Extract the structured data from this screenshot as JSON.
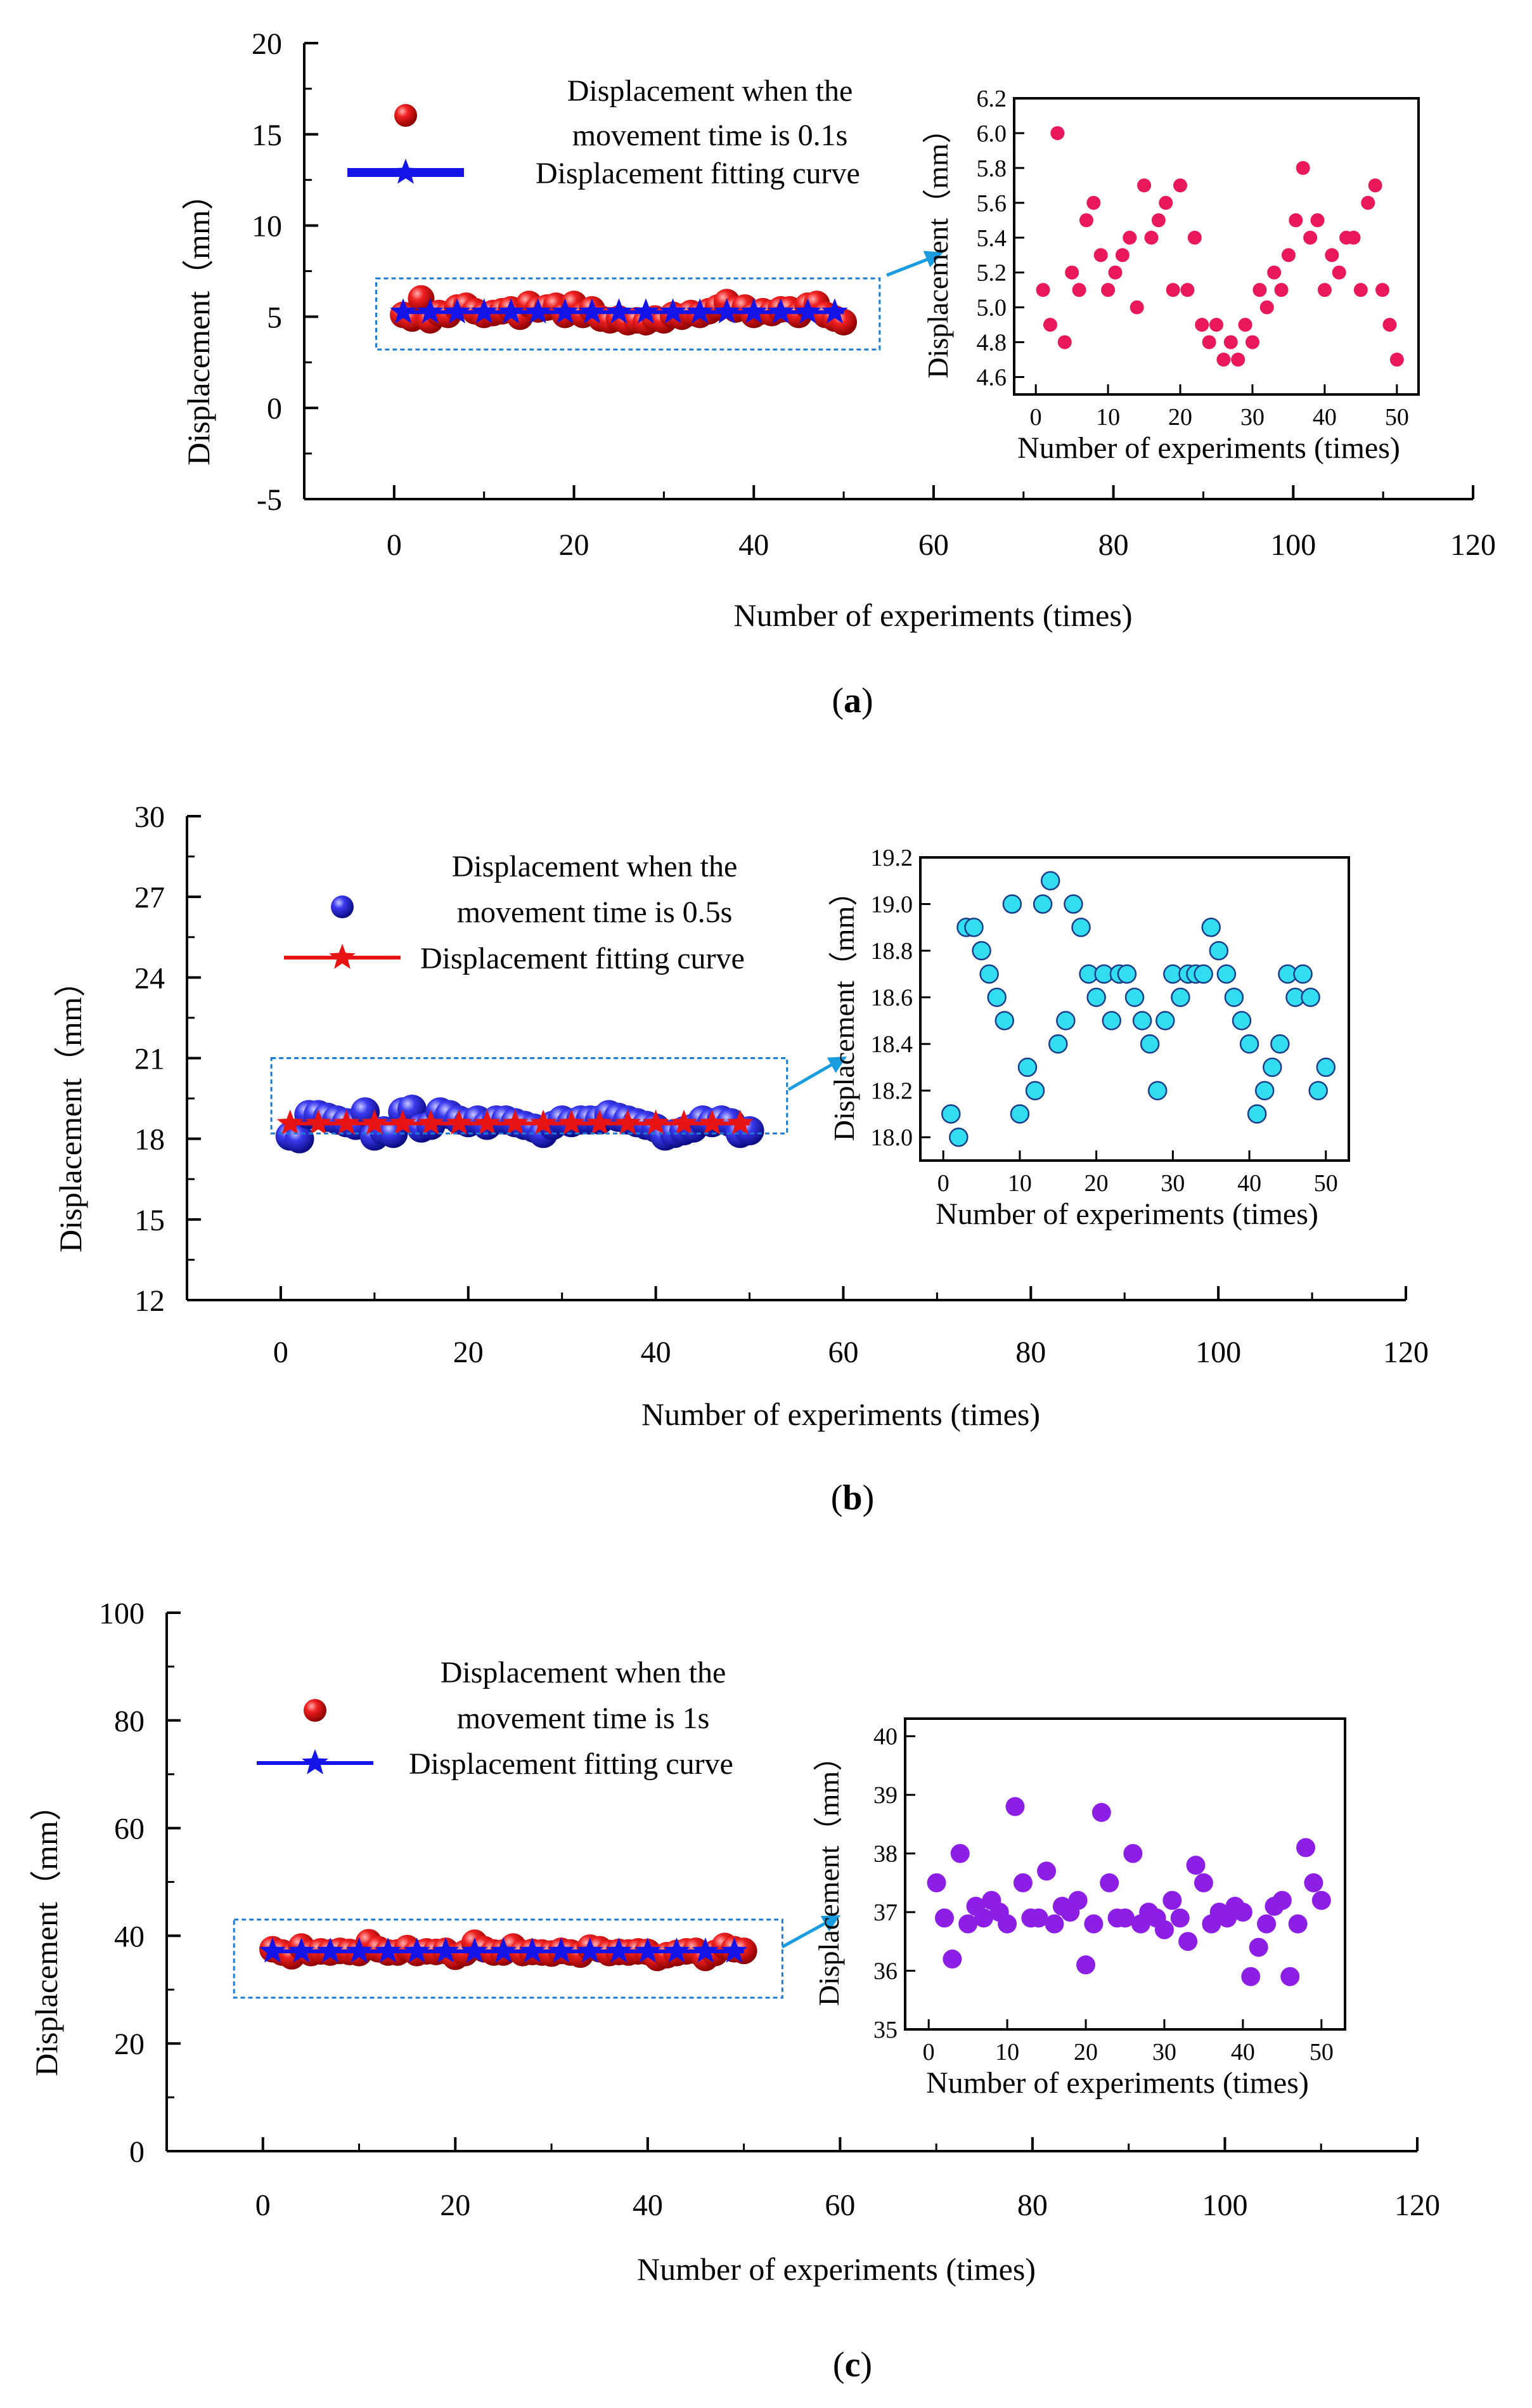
{
  "panels": [
    {
      "caption": "(a)",
      "caption_letter": "a",
      "chart_data": {
        "type": "scatter",
        "xlabel": "Number of experiments (times)",
        "ylabel": "Displacement（mm）",
        "xlim": [
          -10,
          120
        ],
        "ylim": [
          -5,
          20
        ],
        "xticks": [
          0,
          20,
          40,
          60,
          80,
          100,
          120
        ],
        "yticks": [
          -5,
          0,
          5,
          10,
          15,
          20
        ],
        "legend_position": "top-left",
        "series": [
          {
            "name": "Displacement when the movement time is 0.1s",
            "marker": "sphere",
            "color": "#e8141b",
            "x": [
              1,
              2,
              3,
              4,
              5,
              6,
              7,
              8,
              9,
              10,
              11,
              12,
              13,
              14,
              15,
              16,
              17,
              18,
              19,
              20,
              21,
              22,
              23,
              24,
              25,
              26,
              27,
              28,
              29,
              30,
              31,
              32,
              33,
              34,
              35,
              36,
              37,
              38,
              39,
              40,
              41,
              42,
              43,
              44,
              45,
              46,
              47,
              48,
              49,
              50
            ],
            "values": [
              5.1,
              4.9,
              6.0,
              4.8,
              5.2,
              5.1,
              5.5,
              5.6,
              5.3,
              5.1,
              5.2,
              5.3,
              5.4,
              5.0,
              5.7,
              5.4,
              5.5,
              5.6,
              5.1,
              5.7,
              5.1,
              5.4,
              4.9,
              4.8,
              4.9,
              4.7,
              4.8,
              4.7,
              4.9,
              4.8,
              5.1,
              5.0,
              5.2,
              5.1,
              5.3,
              5.5,
              5.8,
              5.4,
              5.5,
              5.1,
              5.3,
              5.2,
              5.4,
              5.4,
              5.1,
              5.6,
              5.7,
              5.1,
              4.9,
              4.7
            ]
          },
          {
            "name": "Displacement fitting curve",
            "marker": "star-line",
            "color": "#1414e8",
            "x": [
              1,
              50
            ],
            "values": [
              5.25,
              5.25
            ]
          }
        ],
        "highlight_box": {
          "x": [
            -2,
            54
          ],
          "y": [
            3.2,
            7.1
          ]
        }
      },
      "inset_chart_data": {
        "type": "scatter",
        "xlabel": "Number of experiments (times)",
        "ylabel": "Displacement（mm）",
        "xlim": [
          -3,
          53
        ],
        "ylim": [
          4.5,
          6.2
        ],
        "xticks": [
          0,
          10,
          20,
          30,
          40,
          50
        ],
        "yticks": [
          4.6,
          4.8,
          5.0,
          5.2,
          5.4,
          5.6,
          5.8,
          6.0,
          6.2
        ],
        "ytick_labels": [
          "4.6",
          "4.8",
          "5.0",
          "5.2",
          "5.4",
          "5.6",
          "5.8",
          "6.0",
          "6.2"
        ],
        "marker_color": "#e8185a",
        "marker_style": "filled-circle"
      }
    },
    {
      "caption": "(b)",
      "caption_letter": "b",
      "chart_data": {
        "type": "scatter",
        "xlabel": "Number of experiments (times)",
        "ylabel": "Displacement（mm）",
        "xlim": [
          -10,
          120
        ],
        "ylim": [
          12,
          30
        ],
        "xticks": [
          0,
          20,
          40,
          60,
          80,
          100,
          120
        ],
        "yticks": [
          12,
          15,
          18,
          21,
          24,
          27,
          30
        ],
        "legend_position": "top-left",
        "series": [
          {
            "name": "Displacement when the movement time is 0.5s",
            "marker": "sphere",
            "color": "#2a2ae0",
            "x": [
              1,
              2,
              3,
              4,
              5,
              6,
              7,
              8,
              9,
              10,
              11,
              12,
              13,
              14,
              15,
              16,
              17,
              18,
              19,
              20,
              21,
              22,
              23,
              24,
              25,
              26,
              27,
              28,
              29,
              30,
              31,
              32,
              33,
              34,
              35,
              36,
              37,
              38,
              39,
              40,
              41,
              42,
              43,
              44,
              45,
              46,
              47,
              48,
              49,
              50
            ],
            "values": [
              18.1,
              18.0,
              18.9,
              18.9,
              18.8,
              18.7,
              18.6,
              18.5,
              19.0,
              18.1,
              18.3,
              18.2,
              19.0,
              19.1,
              18.4,
              18.5,
              19.0,
              18.9,
              18.7,
              18.6,
              18.7,
              18.5,
              18.7,
              18.7,
              18.6,
              18.5,
              18.4,
              18.2,
              18.5,
              18.7,
              18.6,
              18.7,
              18.7,
              18.7,
              18.9,
              18.8,
              18.7,
              18.6,
              18.5,
              18.4,
              18.1,
              18.2,
              18.3,
              18.4,
              18.7,
              18.6,
              18.7,
              18.6,
              18.2,
              18.3
            ]
          },
          {
            "name": "Displacement fitting curve",
            "marker": "star-line",
            "color": "#e81414",
            "x": [
              1,
              50
            ],
            "values": [
              18.57,
              18.57
            ]
          }
        ],
        "highlight_box": {
          "x": [
            -1,
            54
          ],
          "y": [
            18.2,
            21.0
          ]
        }
      },
      "inset_chart_data": {
        "type": "scatter",
        "xlabel": "Number of experiments (times)",
        "ylabel": "Displacement（mm）",
        "xlim": [
          -3,
          53
        ],
        "ylim": [
          17.9,
          19.2
        ],
        "xticks": [
          0,
          10,
          20,
          30,
          40,
          50
        ],
        "yticks": [
          18.0,
          18.2,
          18.4,
          18.6,
          18.8,
          19.0,
          19.2
        ],
        "ytick_labels": [
          "18.0",
          "18.2",
          "18.4",
          "18.6",
          "18.8",
          "19.0",
          "19.2"
        ],
        "marker_color": "#33ddf0",
        "marker_style": "outlined-circle"
      }
    },
    {
      "caption": "(c)",
      "caption_letter": "c",
      "chart_data": {
        "type": "scatter",
        "xlabel": "Number of experiments (times)",
        "ylabel": "Displacement（mm）",
        "xlim": [
          -10,
          120
        ],
        "ylim": [
          0,
          100
        ],
        "xticks": [
          0,
          20,
          40,
          60,
          80,
          100,
          120
        ],
        "yticks": [
          0,
          20,
          40,
          60,
          80,
          100
        ],
        "legend_position": "top-left",
        "series": [
          {
            "name": "Displacement when the movement time is 1s",
            "marker": "sphere",
            "color": "#e8141b",
            "x": [
              1,
              2,
              3,
              4,
              5,
              6,
              7,
              8,
              9,
              10,
              11,
              12,
              13,
              14,
              15,
              16,
              17,
              18,
              19,
              20,
              21,
              22,
              23,
              24,
              25,
              26,
              27,
              28,
              29,
              30,
              31,
              32,
              33,
              34,
              35,
              36,
              37,
              38,
              39,
              40,
              41,
              42,
              43,
              44,
              45,
              46,
              47,
              48,
              49,
              50
            ],
            "values": [
              37.5,
              36.9,
              36.2,
              38.0,
              36.8,
              37.1,
              36.9,
              37.2,
              37.0,
              36.8,
              38.8,
              37.5,
              36.9,
              36.9,
              37.7,
              36.8,
              37.1,
              37.0,
              37.2,
              36.1,
              36.8,
              38.7,
              37.5,
              36.9,
              36.9,
              38.0,
              36.8,
              37.0,
              36.9,
              36.7,
              37.2,
              36.9,
              36.5,
              37.8,
              37.5,
              36.8,
              37.0,
              36.9,
              37.1,
              37.0,
              35.9,
              36.4,
              36.8,
              37.1,
              37.2,
              35.9,
              36.8,
              38.1,
              37.5,
              37.2
            ]
          },
          {
            "name": "Displacement fitting curve",
            "marker": "star-line",
            "color": "#1414e8",
            "x": [
              1,
              50
            ],
            "values": [
              37.1,
              37.1
            ]
          }
        ],
        "highlight_box": {
          "x": [
            -3,
            54
          ],
          "y": [
            28.5,
            43.0
          ]
        }
      },
      "inset_chart_data": {
        "type": "scatter",
        "xlabel": "Number of experiments (times)",
        "ylabel": "Displacement（mm）",
        "xlim": [
          -3,
          53
        ],
        "ylim": [
          35,
          40.3
        ],
        "xticks": [
          0,
          10,
          20,
          30,
          40,
          50
        ],
        "yticks": [
          35,
          36,
          37,
          38,
          39,
          40
        ],
        "ytick_labels": [
          "35",
          "36",
          "37",
          "38",
          "39",
          "40"
        ],
        "marker_color": "#8c1ee6",
        "marker_style": "filled-circle"
      }
    }
  ],
  "connector_color": "#1a9de0",
  "box_color": "#1a7bd4"
}
